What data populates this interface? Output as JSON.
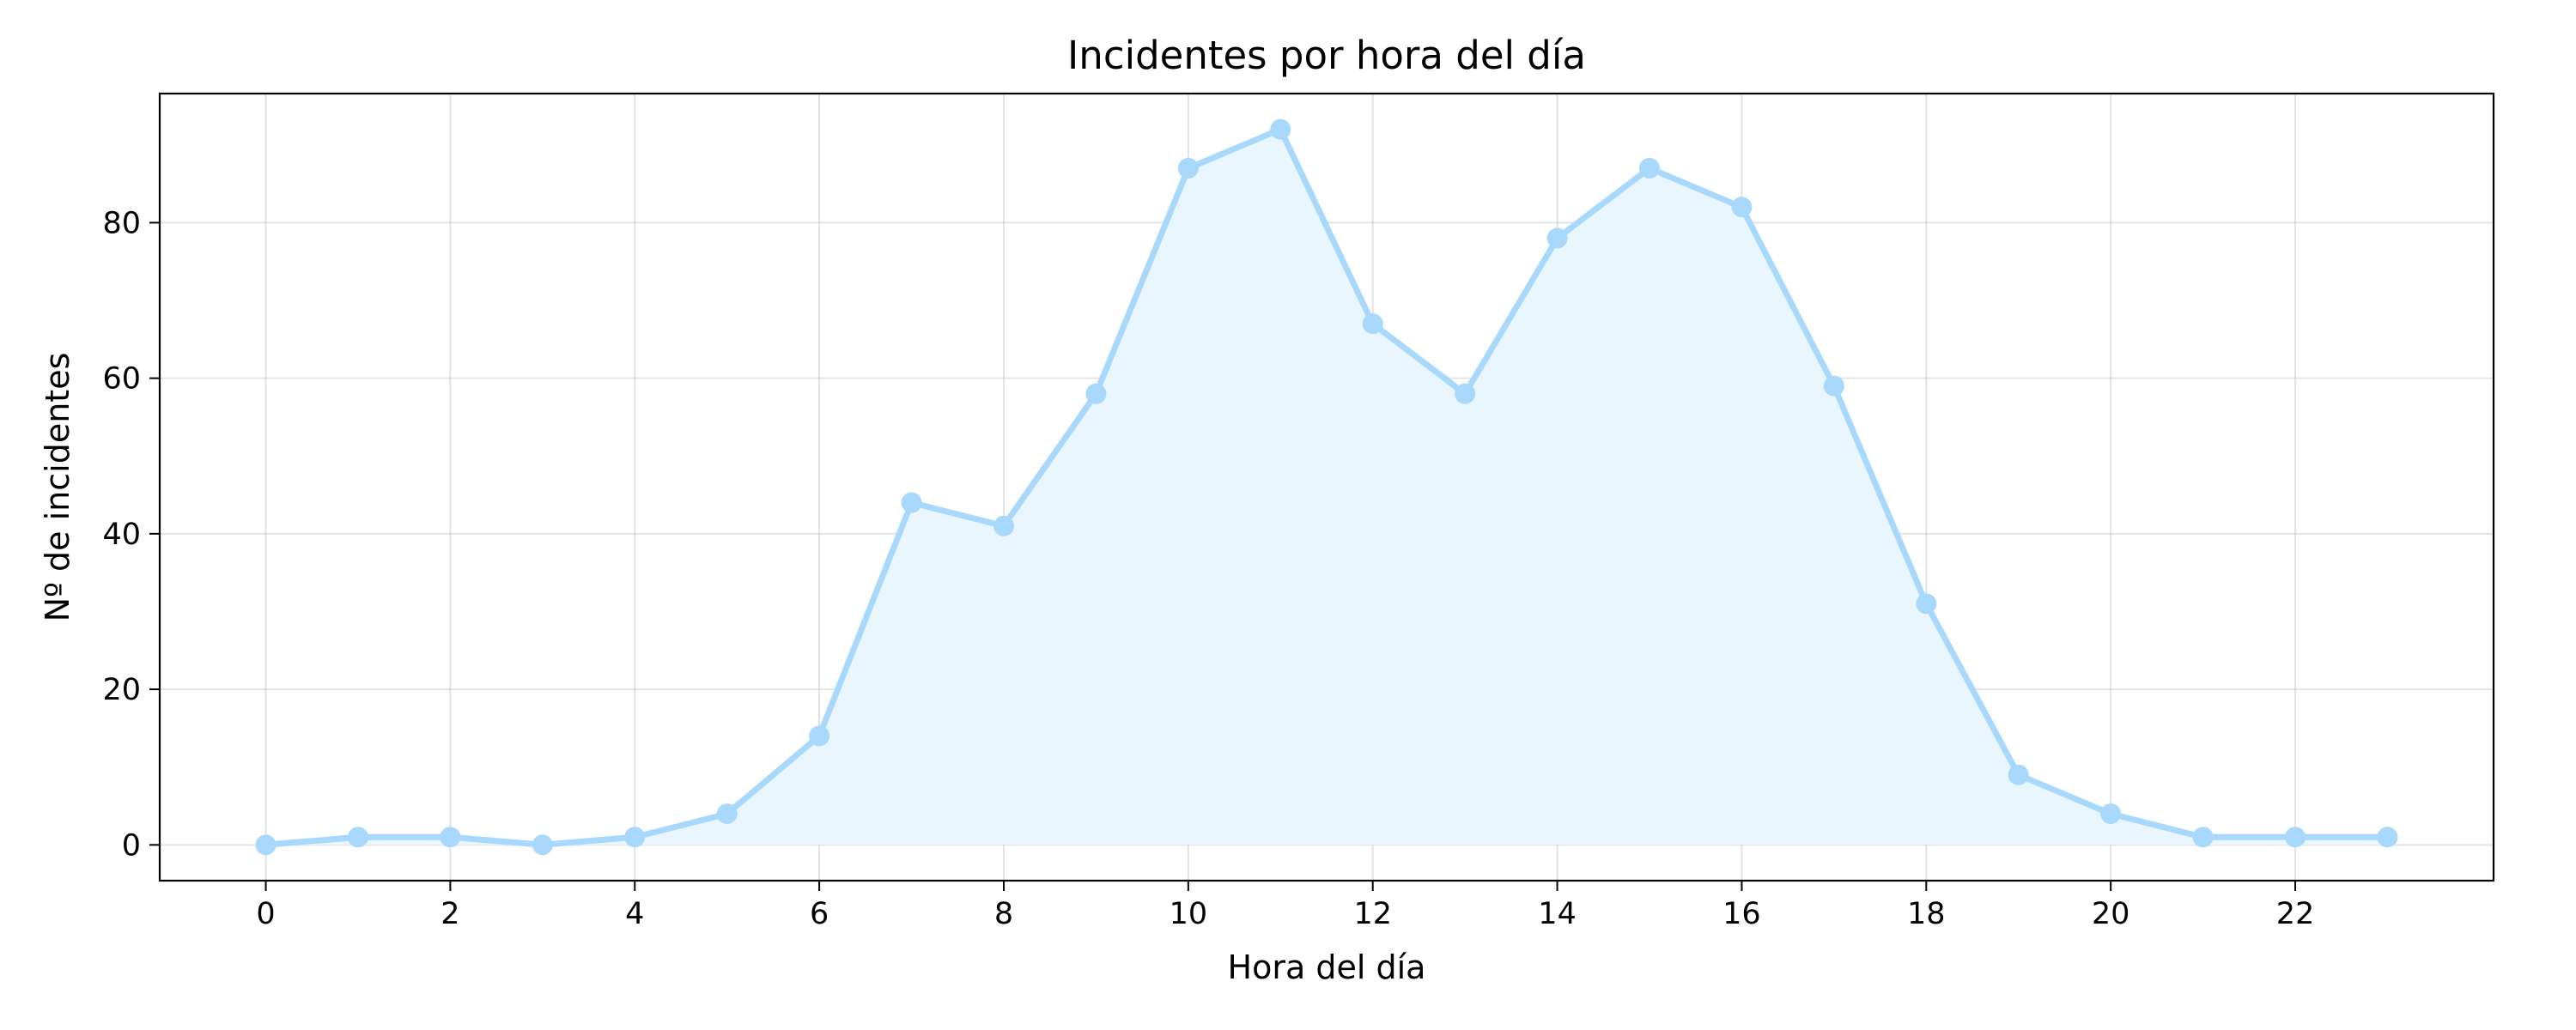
{
  "chart_data": {
    "type": "line",
    "title": "Incidentes por hora del día",
    "xlabel": "Hora del día",
    "ylabel": "Nº de incidentes",
    "x": [
      0,
      1,
      2,
      3,
      4,
      5,
      6,
      7,
      8,
      9,
      10,
      11,
      12,
      13,
      14,
      15,
      16,
      17,
      18,
      19,
      20,
      21,
      22,
      23
    ],
    "series": [
      {
        "values": [
          0,
          1,
          1,
          0,
          1,
          4,
          14,
          44,
          41,
          58,
          87,
          92,
          67,
          58,
          78,
          87,
          82,
          59,
          31,
          9,
          4,
          1,
          1,
          1
        ],
        "color": "#a8d8fb",
        "fill": "#eaf6fe",
        "markers": true,
        "area_fill": true
      }
    ],
    "xticks": [
      0,
      2,
      4,
      6,
      8,
      10,
      12,
      14,
      16,
      18,
      20,
      22
    ],
    "yticks": [
      0,
      20,
      40,
      60,
      80
    ],
    "xticklabels": [
      "0",
      "2",
      "4",
      "6",
      "8",
      "10",
      "12",
      "14",
      "16",
      "18",
      "20",
      "22"
    ],
    "yticklabels": [
      "0",
      "20",
      "40",
      "60",
      "80"
    ],
    "xlim": [
      -1.15,
      24.15
    ],
    "ylim": [
      -4.6,
      96.6
    ],
    "grid": true,
    "legend": false
  }
}
